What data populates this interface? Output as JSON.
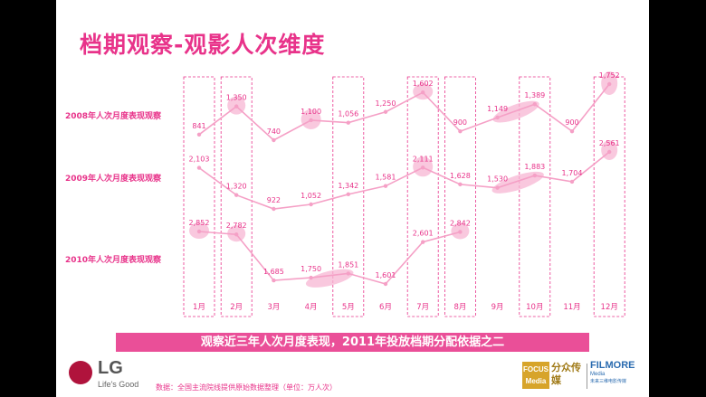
{
  "title": "档期观察-观影人次维度",
  "banner": "观察近三年人次月度表现，2011年投放档期分配依据之二",
  "source": "数据：全国主流院线提供原始数据整理（单位：万人次）",
  "logos": {
    "lg_name": "LG",
    "lg_tagline": "Life's Good",
    "focus_line1": "FOCUS",
    "focus_line2": "Media",
    "focus_cn": "分众传媒",
    "filmore_name": "FILMORE",
    "filmore_sub": "Media",
    "filmore_cn": "未来三维电影传媒"
  },
  "colors": {
    "accent": "#e8338a",
    "line": "#f5a0c6",
    "highlight": "#f7b6d3",
    "banner": "#ea4f98"
  },
  "chart_data": {
    "type": "line",
    "categories": [
      "1月",
      "2月",
      "3月",
      "4月",
      "5月",
      "6月",
      "7月",
      "8月",
      "9月",
      "10月",
      "11月",
      "12月"
    ],
    "series": [
      {
        "name": "2008年人次月度表现观察",
        "values": [
          841,
          1350,
          740,
          1100,
          1056,
          1250,
          1602,
          900,
          1149,
          1389,
          900,
          1752
        ],
        "labels": [
          "841",
          "1,350",
          "740",
          "1,100",
          "1,056",
          "1,250",
          "1,602",
          "900",
          "1,149",
          "1,389",
          "900",
          "1,752"
        ]
      },
      {
        "name": "2009年人次月度表现观察",
        "values": [
          2103,
          1320,
          922,
          1052,
          1342,
          1581,
          2111,
          1628,
          1530,
          1883,
          1704,
          2561
        ],
        "labels": [
          "2,103",
          "1,320",
          "922",
          "1,052",
          "1,342",
          "1,581",
          "2,111",
          "1,628",
          "1,530",
          "1,883",
          "1,704",
          "2,561"
        ]
      },
      {
        "name": "2010年人次月度表现观察",
        "values": [
          2852,
          2782,
          1685,
          1750,
          1851,
          1601,
          2601,
          2842,
          null,
          null,
          null,
          null
        ],
        "labels": [
          "2,852",
          "2,782",
          "1,685",
          "1,750",
          "1,851",
          "1,601",
          "2,601",
          "2,842",
          "",
          "",
          "",
          ""
        ]
      }
    ],
    "highlighted_months": [
      "1月",
      "2月",
      "5月",
      "7月",
      "8月",
      "10月",
      "12月"
    ],
    "xlabel": "",
    "ylabel": "",
    "grid": false,
    "legend": "left-labels"
  }
}
